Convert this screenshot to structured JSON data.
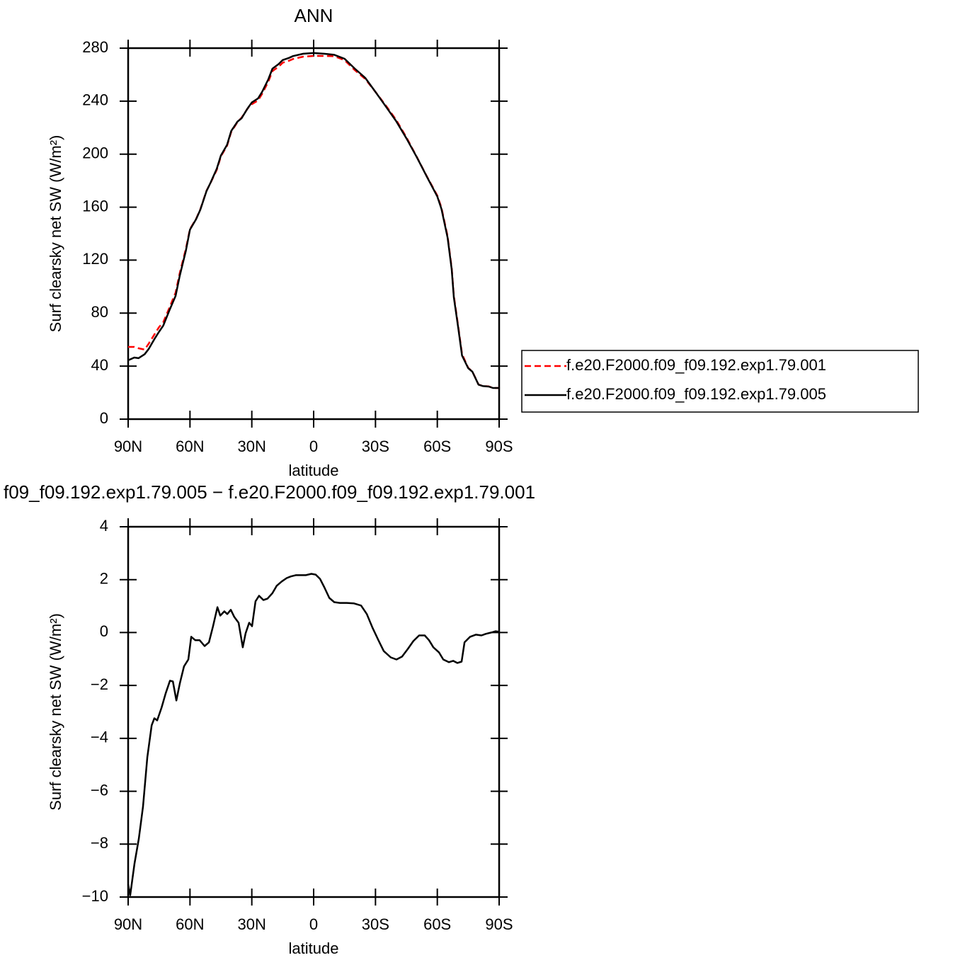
{
  "chart_data": [
    {
      "type": "line",
      "title": "ANN",
      "xlabel": "latitude",
      "ylabel": "Surf clearsky net SW (W/m²)",
      "xlim": [
        90,
        -90
      ],
      "ylim": [
        0,
        280
      ],
      "xticks": [
        {
          "value": 90,
          "label": "90N"
        },
        {
          "value": 60,
          "label": "60N"
        },
        {
          "value": 30,
          "label": "30N"
        },
        0,
        {
          "value": -30,
          "label": "30S"
        },
        {
          "value": -60,
          "label": "60S"
        },
        {
          "value": -90,
          "label": "90S"
        }
      ],
      "yticks": [
        0,
        40,
        80,
        120,
        160,
        200,
        240,
        280
      ],
      "legend": "right",
      "x": [
        90,
        87,
        85,
        82,
        80,
        77,
        75,
        73,
        70,
        67,
        65,
        62,
        60,
        57,
        55,
        52,
        50,
        47,
        45,
        42,
        40,
        37,
        35,
        32,
        30,
        27,
        25,
        22,
        20,
        17,
        15,
        12,
        10,
        5,
        0,
        -5,
        -10,
        -15,
        -20,
        -25,
        -30,
        -35,
        -40,
        -45,
        -50,
        -55,
        -60,
        -62,
        -65,
        -67,
        -68,
        -70,
        -72,
        -75,
        -77,
        -80,
        -82,
        -85,
        -87,
        -90
      ],
      "series": [
        {
          "name": "f.e20.F2000.f09_f09.192.exp1.79.001",
          "color": "#ff0000",
          "dashed": true,
          "values": [
            54.5,
            54.5,
            53.5,
            52.5,
            57,
            64.5,
            69.5,
            73,
            84,
            95.5,
            110,
            128.5,
            143.5,
            151.3,
            158.3,
            172.3,
            178.3,
            188.2,
            198.3,
            206.3,
            216.8,
            224.1,
            227.4,
            234.5,
            237.7,
            240.5,
            245.5,
            254.7,
            262.7,
            266,
            269,
            270.5,
            271.8,
            273.6,
            274.1,
            274.1,
            273.9,
            270.9,
            263.4,
            256.8,
            247,
            236.7,
            226,
            212.7,
            198,
            183,
            168.7,
            159.6,
            138.1,
            114.1,
            93.1,
            71.6,
            49.1,
            38.7,
            35.9,
            26.1,
            25.1,
            24.7,
            23.5,
            23.5
          ]
        },
        {
          "name": "f.e20.F2000.f09_f09.192.exp1.79.005",
          "color": "#000000",
          "dashed": false,
          "values": [
            44.4,
            46.5,
            46,
            49,
            53,
            61,
            66,
            70.5,
            82,
            93,
            108,
            127,
            143,
            151,
            158,
            172,
            178.5,
            189,
            199,
            207,
            217.5,
            224.5,
            227,
            234.6,
            239,
            242,
            247,
            256.5,
            264.5,
            268,
            271,
            272.6,
            274,
            275.8,
            276.3,
            275.8,
            275,
            272,
            264.5,
            257.6,
            247,
            236,
            225,
            212,
            197.8,
            182.8,
            168,
            158.7,
            137,
            113,
            92,
            70.5,
            48,
            38.5,
            35.8,
            26,
            25,
            24.6,
            23.5,
            23.5
          ]
        }
      ]
    },
    {
      "type": "line",
      "title": "f09_f09.192.exp1.79.005 − f.e20.F2000.f09_f09.192.exp1.79.001",
      "xlabel": "latitude",
      "ylabel": "Surf clearsky net SW (W/m²)",
      "xlim": [
        90,
        -90
      ],
      "ylim": [
        -10,
        4
      ],
      "xticks": [
        {
          "value": 90,
          "label": "90N"
        },
        {
          "value": 60,
          "label": "60N"
        },
        {
          "value": 30,
          "label": "30N"
        },
        0,
        {
          "value": -30,
          "label": "30S"
        },
        {
          "value": -60,
          "label": "60S"
        },
        {
          "value": -90,
          "label": "90S"
        }
      ],
      "yticks": [
        {
          "value": -10,
          "label": "−10"
        },
        {
          "value": -8,
          "label": "−8"
        },
        {
          "value": -6,
          "label": "−6"
        },
        {
          "value": -4,
          "label": "−4"
        },
        {
          "value": -2,
          "label": "−2"
        },
        0,
        2,
        4
      ],
      "color": "#000000",
      "x": [
        90,
        89,
        86.9,
        84.8,
        82.8,
        80.7,
        78.6,
        77.3,
        75.9,
        73.8,
        71.8,
        69.7,
        68.3,
        66.6,
        64.9,
        62.9,
        60.8,
        59.4,
        57.4,
        55.3,
        52.9,
        50.8,
        48.8,
        46.7,
        45.3,
        43.3,
        41.9,
        40.2,
        38.5,
        36.4,
        34.4,
        33,
        31.3,
        29.9,
        28.2,
        26.5,
        24.4,
        22.4,
        20,
        17.9,
        15.5,
        13.1,
        11.1,
        8.7,
        6.2,
        3.8,
        1.1,
        -1,
        -3.1,
        -5.2,
        -7.6,
        -10,
        -12.7,
        -16.1,
        -19.6,
        -23,
        -25.8,
        -28.5,
        -31.3,
        -34,
        -37.4,
        -40.2,
        -42.9,
        -45.7,
        -48.4,
        -51.2,
        -53.9,
        -56,
        -58.1,
        -60.8,
        -62.9,
        -65.6,
        -67.7,
        -69.7,
        -71.8,
        -73.2,
        -75.9,
        -78.7,
        -81.4,
        -83.5,
        -86.2,
        -88.3,
        -90
      ],
      "values": [
        -9.53,
        -9.93,
        -8.73,
        -7.79,
        -6.58,
        -4.71,
        -3.51,
        -3.24,
        -3.32,
        -2.84,
        -2.3,
        -1.82,
        -1.85,
        -2.57,
        -1.91,
        -1.28,
        -1.02,
        -0.16,
        -0.29,
        -0.29,
        -0.51,
        -0.37,
        0.24,
        0.96,
        0.64,
        0.8,
        0.7,
        0.86,
        0.59,
        0.37,
        -0.56,
        -0.03,
        0.37,
        0.24,
        1.18,
        1.39,
        1.23,
        1.28,
        1.49,
        1.77,
        1.93,
        2.06,
        2.12,
        2.17,
        2.17,
        2.17,
        2.22,
        2.19,
        2.03,
        1.71,
        1.31,
        1.15,
        1.12,
        1.12,
        1.1,
        1.02,
        0.7,
        0.19,
        -0.27,
        -0.7,
        -0.94,
        -1.02,
        -0.91,
        -0.62,
        -0.32,
        -0.11,
        -0.11,
        -0.29,
        -0.56,
        -0.75,
        -1.02,
        -1.12,
        -1.07,
        -1.15,
        -1.1,
        -0.37,
        -0.16,
        -0.08,
        -0.11,
        -0.05,
        0,
        0.05,
        0.03
      ]
    }
  ]
}
